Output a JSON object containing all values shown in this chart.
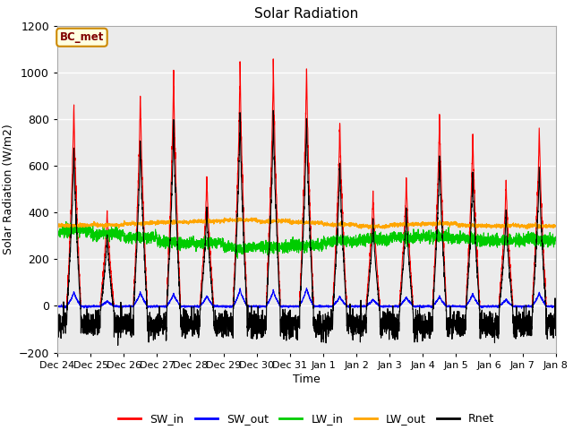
{
  "title": "Solar Radiation",
  "xlabel": "Time",
  "ylabel": "Solar Radiation (W/m2)",
  "ylim": [
    -200,
    1200
  ],
  "yticks": [
    -200,
    0,
    200,
    400,
    600,
    800,
    1000,
    1200
  ],
  "xtick_labels": [
    "Dec 24",
    "Dec 25",
    "Dec 26",
    "Dec 27",
    "Dec 28",
    "Dec 29",
    "Dec 30",
    "Dec 31",
    "Jan 1",
    "Jan 2",
    "Jan 3",
    "Jan 4",
    "Jan 5",
    "Jan 6",
    "Jan 7",
    "Jan 8"
  ],
  "colors": {
    "SW_in": "#ff0000",
    "SW_out": "#0000ff",
    "LW_in": "#00cc00",
    "LW_out": "#ffa500",
    "Rnet": "#000000"
  },
  "plot_bg": "#ebebeb",
  "annotation_text": "BC_met",
  "annotation_bg": "#ffffe0",
  "annotation_border": "#cc8800",
  "annotation_text_color": "#800000",
  "sw_in_peaks": [
    890,
    420,
    940,
    1030,
    570,
    1060,
    1070,
    1050,
    820,
    500,
    560,
    840,
    760,
    550,
    780
  ],
  "lw_in_base": [
    320,
    305,
    290,
    275,
    265,
    250,
    255,
    260,
    275,
    285,
    295,
    300,
    290,
    280,
    285
  ],
  "lw_out_base": [
    345,
    348,
    352,
    358,
    362,
    368,
    363,
    358,
    348,
    342,
    347,
    352,
    347,
    342,
    342
  ]
}
